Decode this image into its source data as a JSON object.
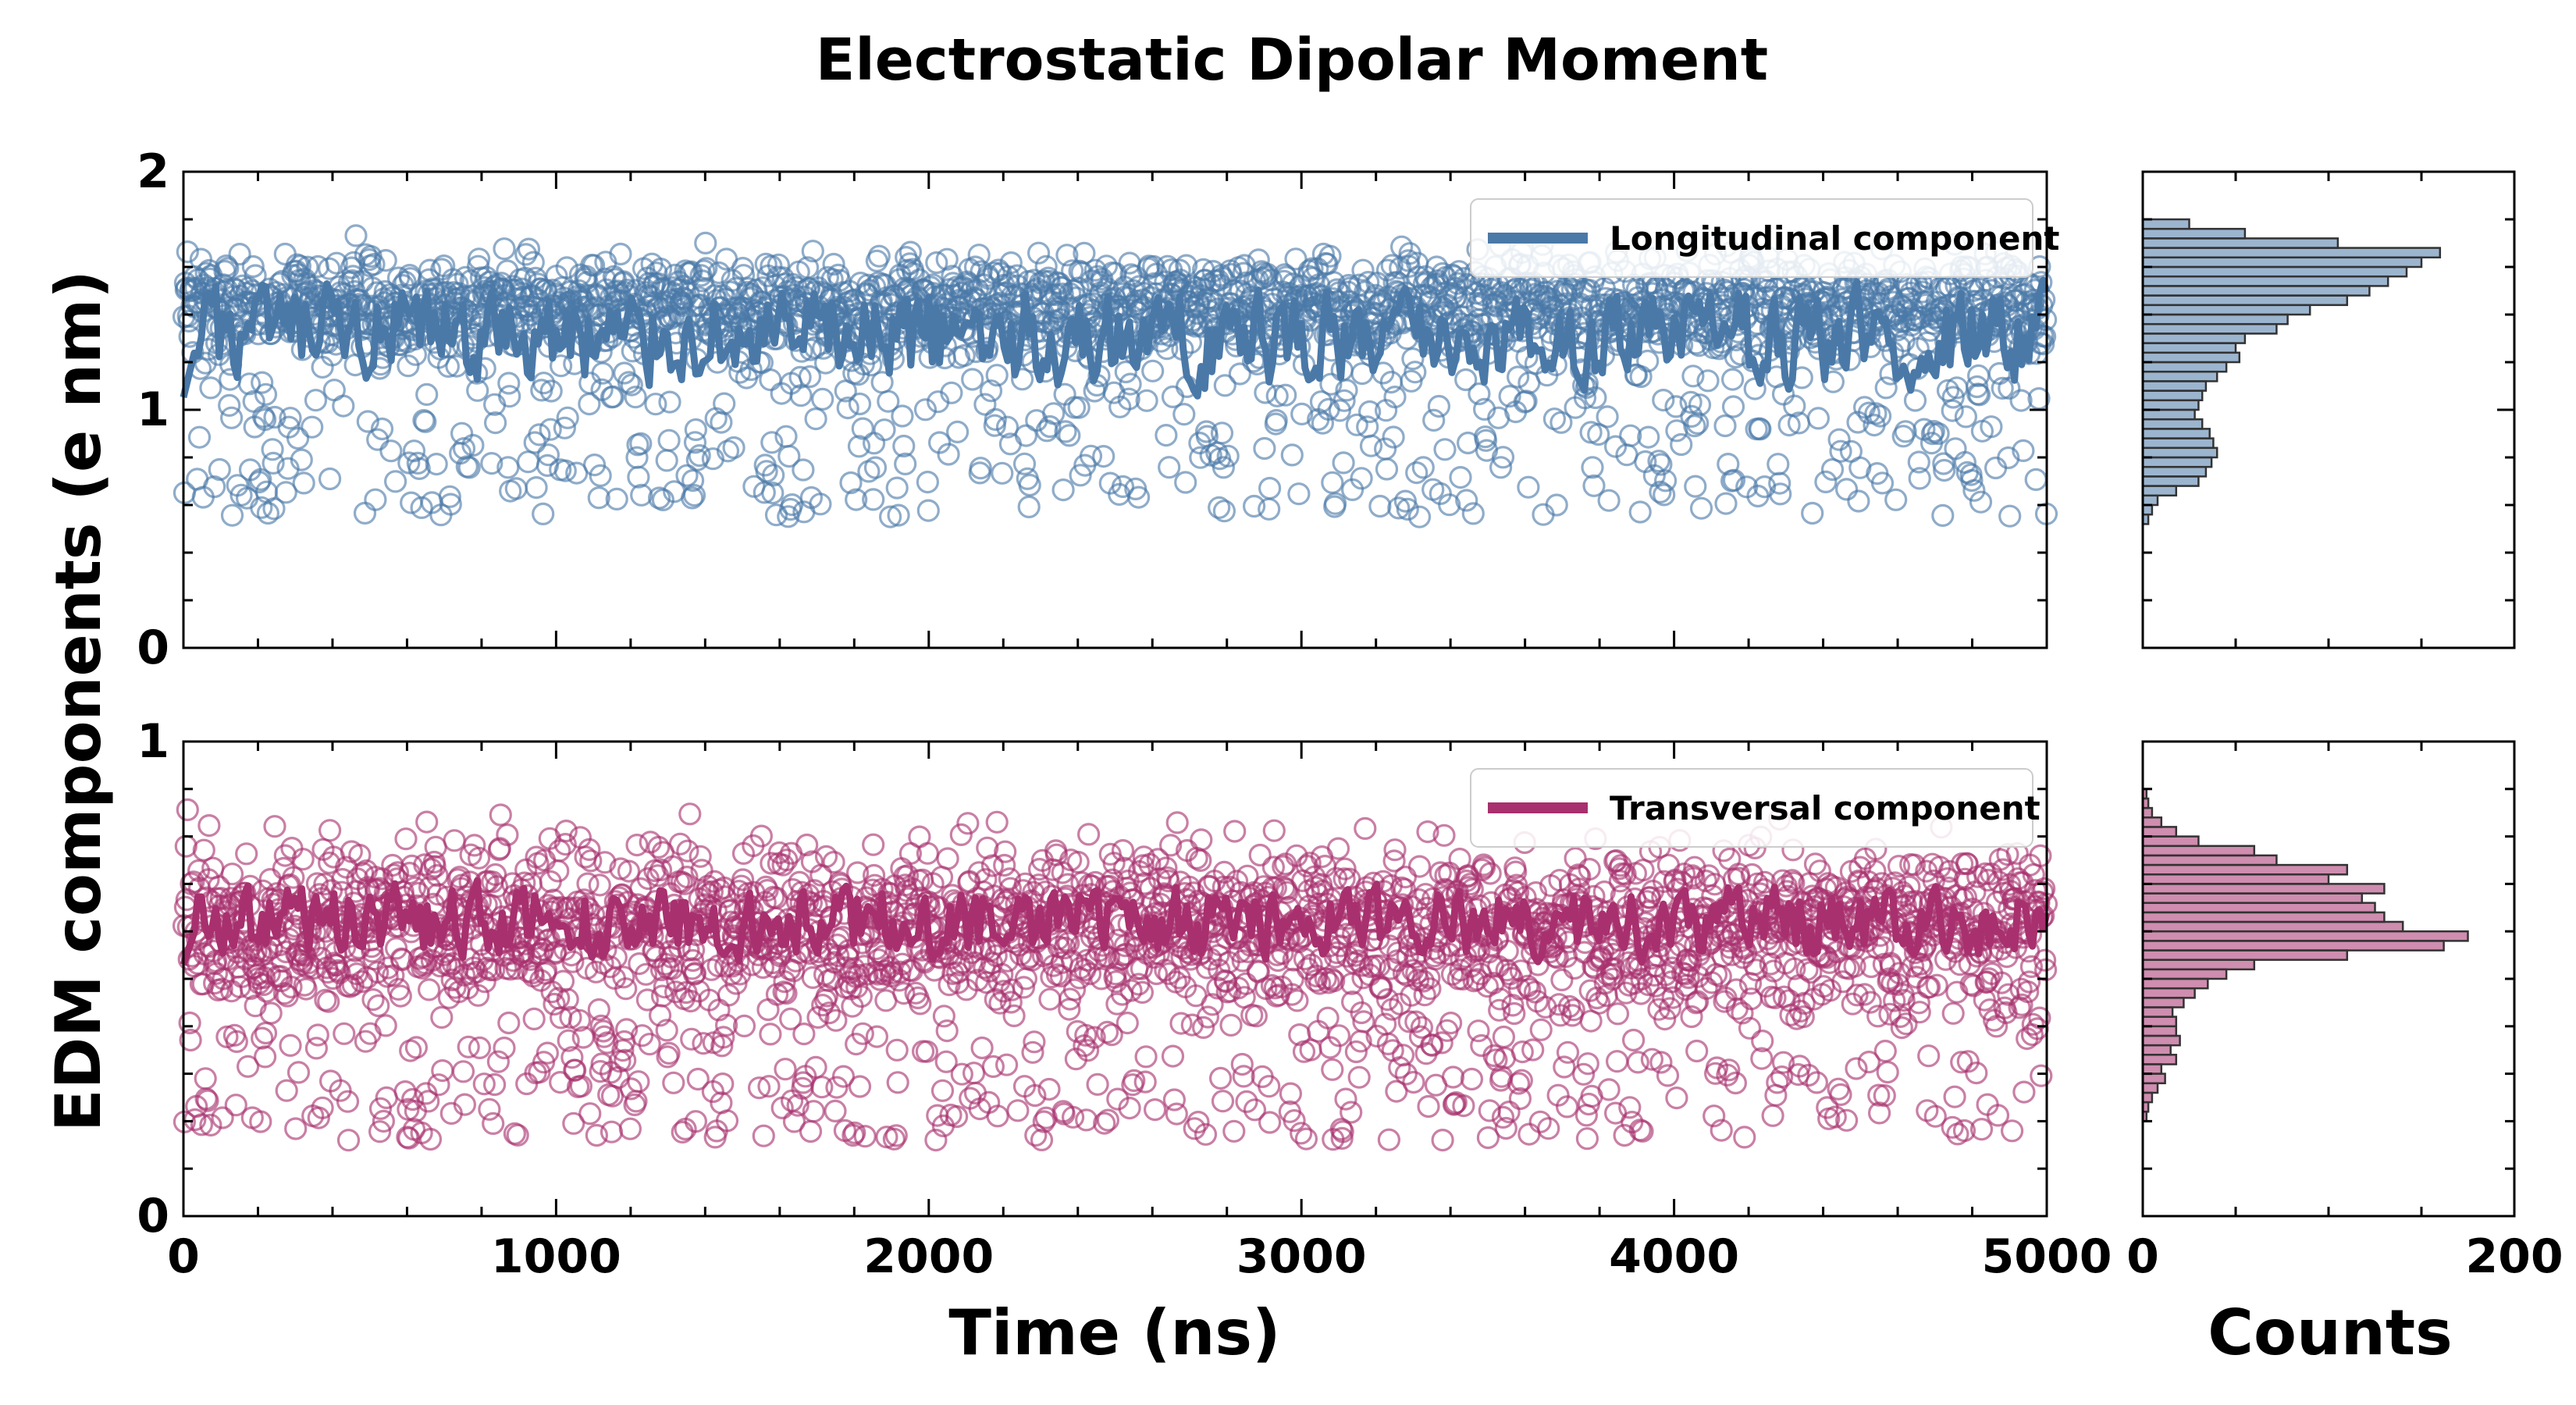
{
  "chart_data": {
    "type": "scatter",
    "title": "Electrostatic Dipolar Moment",
    "ylabel": "EDM components (e nm)",
    "xlabel": "Time (ns)",
    "hist_xlabel": "Counts",
    "xlim": [
      0,
      5000
    ],
    "x_ticks": [
      "0",
      "1000",
      "2000",
      "3000",
      "4000",
      "5000"
    ],
    "hist_xlim": [
      0,
      200
    ],
    "hist_x_ticks": [
      "0",
      "200"
    ],
    "panels": [
      {
        "name": "longitudinal",
        "legend": "Longitudinal component",
        "color": "#4a79a8",
        "ylim": [
          0,
          2
        ],
        "y_ticks": [
          "0",
          "1",
          "2"
        ],
        "n_samples": 2500,
        "scatter_center": 1.45,
        "scatter_spread": [
          0.55,
          1.8
        ],
        "running_mean_center": 1.3,
        "running_mean_range": [
          1.0,
          1.55
        ],
        "hist_bin_edges": [
          0.52,
          0.56,
          0.6,
          0.64,
          0.68,
          0.72,
          0.76,
          0.8,
          0.84,
          0.88,
          0.92,
          0.96,
          1.0,
          1.04,
          1.08,
          1.12,
          1.16,
          1.2,
          1.24,
          1.28,
          1.32,
          1.36,
          1.4,
          1.44,
          1.48,
          1.52,
          1.56,
          1.6,
          1.64,
          1.68,
          1.72,
          1.76,
          1.8
        ],
        "hist_counts": [
          3,
          5,
          8,
          18,
          30,
          34,
          37,
          40,
          38,
          36,
          32,
          28,
          30,
          32,
          34,
          40,
          45,
          52,
          50,
          55,
          72,
          78,
          90,
          110,
          122,
          132,
          142,
          150,
          160,
          105,
          55,
          25
        ]
      },
      {
        "name": "transversal",
        "legend": "Transversal component",
        "color": "#a8306e",
        "ylim": [
          0,
          1
        ],
        "y_ticks": [
          "0",
          "1"
        ],
        "n_samples": 2500,
        "scatter_center": 0.62,
        "scatter_spread": [
          0.16,
          0.92
        ],
        "running_mean_center": 0.62,
        "running_mean_range": [
          0.52,
          0.72
        ],
        "hist_bin_edges": [
          0.2,
          0.22,
          0.24,
          0.26,
          0.28,
          0.3,
          0.32,
          0.34,
          0.36,
          0.38,
          0.4,
          0.42,
          0.44,
          0.46,
          0.48,
          0.5,
          0.52,
          0.54,
          0.56,
          0.58,
          0.6,
          0.62,
          0.64,
          0.66,
          0.68,
          0.7,
          0.72,
          0.74,
          0.76,
          0.78,
          0.8,
          0.82,
          0.84,
          0.86,
          0.88,
          0.9
        ],
        "hist_counts": [
          2,
          3,
          5,
          8,
          12,
          10,
          18,
          15,
          20,
          18,
          18,
          16,
          22,
          28,
          35,
          45,
          60,
          110,
          162,
          175,
          140,
          130,
          125,
          118,
          130,
          100,
          110,
          72,
          60,
          30,
          18,
          10,
          5,
          3,
          2
        ]
      }
    ]
  }
}
